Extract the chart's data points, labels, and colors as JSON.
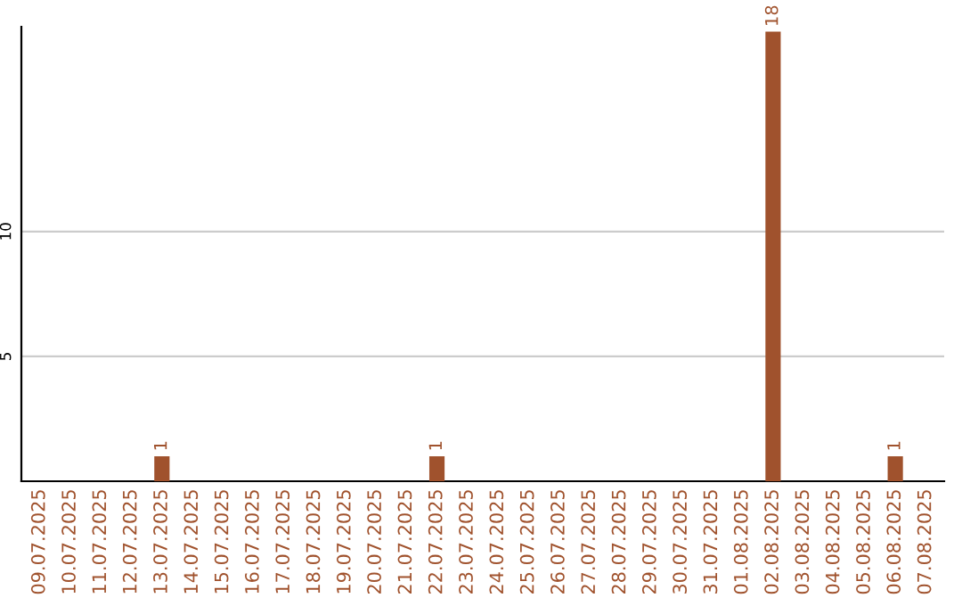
{
  "chart_data": {
    "type": "bar",
    "categories": [
      "09.07.2025",
      "10.07.2025",
      "11.07.2025",
      "12.07.2025",
      "13.07.2025",
      "14.07.2025",
      "15.07.2025",
      "16.07.2025",
      "17.07.2025",
      "18.07.2025",
      "19.07.2025",
      "20.07.2025",
      "21.07.2025",
      "22.07.2025",
      "23.07.2025",
      "24.07.2025",
      "25.07.2025",
      "26.07.2025",
      "27.07.2025",
      "28.07.2025",
      "29.07.2025",
      "30.07.2025",
      "31.07.2025",
      "01.08.2025",
      "02.08.2025",
      "03.08.2025",
      "04.08.2025",
      "05.08.2025",
      "06.08.2025",
      "07.08.2025"
    ],
    "values": [
      0,
      0,
      0,
      0,
      1,
      0,
      0,
      0,
      0,
      0,
      0,
      0,
      0,
      1,
      0,
      0,
      0,
      0,
      0,
      0,
      0,
      0,
      0,
      0,
      18,
      0,
      0,
      0,
      1,
      0
    ],
    "value_labels": [
      null,
      null,
      null,
      null,
      "1",
      null,
      null,
      null,
      null,
      null,
      null,
      null,
      null,
      "1",
      null,
      null,
      null,
      null,
      null,
      null,
      null,
      null,
      null,
      null,
      "18",
      null,
      null,
      null,
      "1",
      null
    ],
    "color": "#a0522d",
    "ylim": [
      0,
      18.2
    ],
    "yticks": [
      5,
      10
    ],
    "grid": "y"
  }
}
